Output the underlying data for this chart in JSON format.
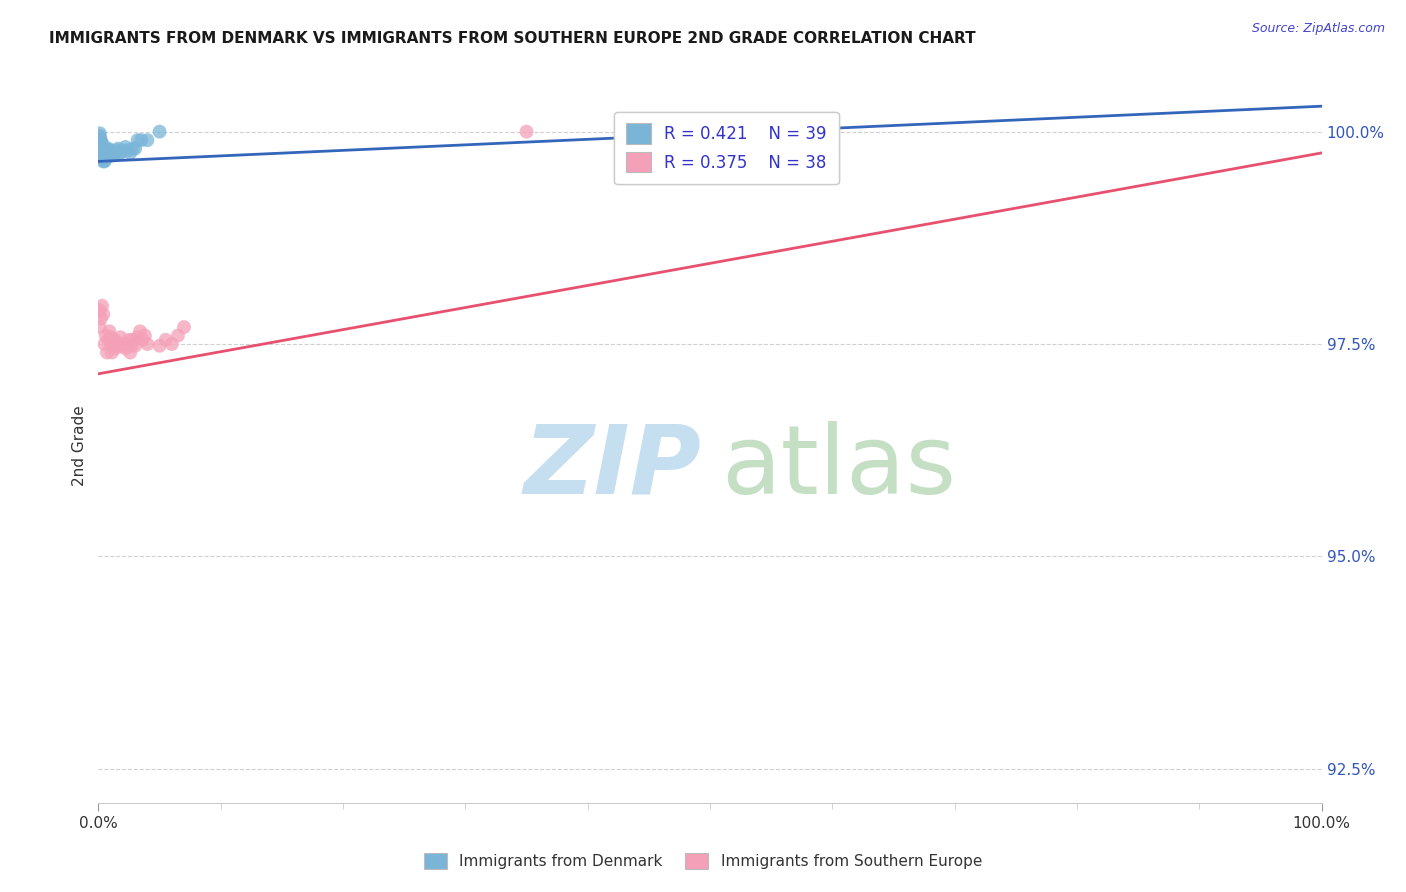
{
  "title": "IMMIGRANTS FROM DENMARK VS IMMIGRANTS FROM SOUTHERN EUROPE 2ND GRADE CORRELATION CHART",
  "source_text": "Source: ZipAtlas.com",
  "ylabel": "2nd Grade",
  "xlim": [
    0.0,
    1.0
  ],
  "ymin": 0.921,
  "ymax": 1.005,
  "ytick_values": [
    0.925,
    0.95,
    0.975,
    1.0
  ],
  "ytick_labels": [
    "92.5%",
    "95.0%",
    "97.5%",
    "100.0%"
  ],
  "xtick_values": [
    0.0,
    1.0
  ],
  "xtick_labels": [
    "0.0%",
    "100.0%"
  ],
  "R_denmark": 0.421,
  "N_denmark": 39,
  "R_southern": 0.375,
  "N_southern": 38,
  "dk_x": [
    0.001,
    0.0012,
    0.0012,
    0.0013,
    0.0015,
    0.0016,
    0.002,
    0.002,
    0.0022,
    0.0025,
    0.003,
    0.003,
    0.0035,
    0.004,
    0.004,
    0.005,
    0.005,
    0.006,
    0.007,
    0.008,
    0.009,
    0.01,
    0.011,
    0.012,
    0.013,
    0.015,
    0.016,
    0.017,
    0.018,
    0.02,
    0.022,
    0.024,
    0.026,
    0.028,
    0.03,
    0.032,
    0.035,
    0.04,
    0.05
  ],
  "dk_y": [
    0.9995,
    0.9985,
    0.9998,
    0.9992,
    0.9988,
    0.999,
    0.9975,
    0.999,
    0.9972,
    0.997,
    0.9975,
    0.9968,
    0.9985,
    0.9972,
    0.9965,
    0.997,
    0.9965,
    0.9968,
    0.997,
    0.998,
    0.9978,
    0.9978,
    0.9975,
    0.9972,
    0.9975,
    0.9978,
    0.998,
    0.9975,
    0.9975,
    0.9978,
    0.9982,
    0.9978,
    0.9975,
    0.998,
    0.998,
    0.999,
    0.999,
    0.999,
    1.0
  ],
  "se_x": [
    0.001,
    0.001,
    0.002,
    0.003,
    0.004,
    0.005,
    0.006,
    0.007,
    0.008,
    0.009,
    0.01,
    0.011,
    0.012,
    0.013,
    0.014,
    0.015,
    0.016,
    0.018,
    0.019,
    0.02,
    0.022,
    0.024,
    0.025,
    0.026,
    0.027,
    0.028,
    0.03,
    0.032,
    0.034,
    0.036,
    0.038,
    0.04,
    0.05,
    0.055,
    0.06,
    0.065,
    0.07,
    0.35
  ],
  "se_y": [
    0.979,
    0.977,
    0.978,
    0.9795,
    0.9785,
    0.975,
    0.976,
    0.974,
    0.9755,
    0.9765,
    0.9758,
    0.974,
    0.975,
    0.9755,
    0.9745,
    0.9748,
    0.9752,
    0.9758,
    0.9748,
    0.975,
    0.9745,
    0.975,
    0.9755,
    0.974,
    0.9748,
    0.9755,
    0.9748,
    0.9758,
    0.9765,
    0.9755,
    0.976,
    0.975,
    0.9748,
    0.9755,
    0.975,
    0.976,
    0.977,
    1.0
  ],
  "dk_line_x0": 0.0,
  "dk_line_x1": 1.0,
  "dk_line_y0": 0.9965,
  "dk_line_y1": 1.003,
  "se_line_x0": 0.0,
  "se_line_x1": 1.0,
  "se_line_y0": 0.9715,
  "se_line_y1": 0.9975,
  "dot_color_dk": "#7ab5d8",
  "dot_color_se": "#f4a0b8",
  "line_color_dk": "#3366bb",
  "line_color_se": "#e85070",
  "legend_label_dk": "Immigrants from Denmark",
  "legend_label_se": "Immigrants from Southern Europe",
  "background_color": "#ffffff",
  "grid_color": "#cccccc",
  "watermark_zip_color": "#c5dff0",
  "watermark_atlas_color": "#c5dfc5",
  "title_color": "#1a1a1a",
  "source_color": "#4444cc",
  "ytick_color": "#3355bb",
  "axis_label_color": "#333333"
}
